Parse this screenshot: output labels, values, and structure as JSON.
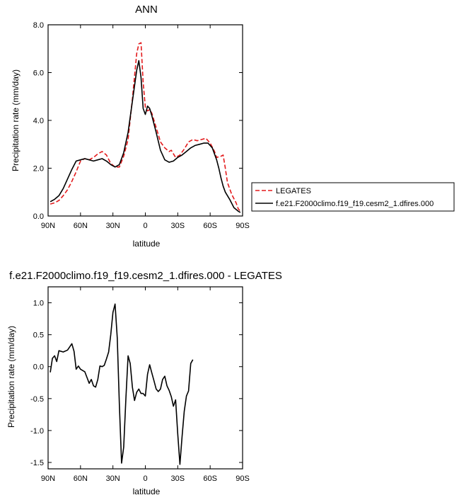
{
  "chart_data": [
    {
      "type": "line",
      "title": "ANN",
      "xlabel": "latitude",
      "ylabel": "Precipitation rate (mm/day)",
      "xlim": [
        -90,
        90
      ],
      "ylim": [
        0,
        8
      ],
      "xticks": [
        {
          "value": -90,
          "label": "90N"
        },
        {
          "value": -60,
          "label": "60N"
        },
        {
          "value": -30,
          "label": "30N"
        },
        {
          "value": 0,
          "label": "0"
        },
        {
          "value": 30,
          "label": "30S"
        },
        {
          "value": 60,
          "label": "60S"
        },
        {
          "value": 90,
          "label": "90S"
        }
      ],
      "yticks": [
        {
          "value": 0,
          "label": "0.0"
        },
        {
          "value": 2,
          "label": "2.0"
        },
        {
          "value": 4,
          "label": "4.0"
        },
        {
          "value": 6,
          "label": "6.0"
        },
        {
          "value": 8,
          "label": "8.0"
        }
      ],
      "grid": false,
      "legend": "right",
      "series": [
        {
          "name": "LEGATES",
          "color": "#e31a1c",
          "dash": true,
          "points": [
            [
              -88,
              0.5
            ],
            [
              -84,
              0.55
            ],
            [
              -80,
              0.65
            ],
            [
              -76,
              0.85
            ],
            [
              -72,
              1.1
            ],
            [
              -68,
              1.45
            ],
            [
              -64,
              1.85
            ],
            [
              -60,
              2.3
            ],
            [
              -56,
              2.4
            ],
            [
              -52,
              2.35
            ],
            [
              -48,
              2.45
            ],
            [
              -44,
              2.6
            ],
            [
              -40,
              2.7
            ],
            [
              -36,
              2.55
            ],
            [
              -32,
              2.2
            ],
            [
              -28,
              2.05
            ],
            [
              -24,
              2.05
            ],
            [
              -20,
              2.5
            ],
            [
              -16,
              3.2
            ],
            [
              -12,
              4.9
            ],
            [
              -8,
              6.8
            ],
            [
              -6,
              7.2
            ],
            [
              -4,
              7.25
            ],
            [
              -2,
              5.6
            ],
            [
              0,
              4.55
            ],
            [
              2,
              4.4
            ],
            [
              4,
              4.45
            ],
            [
              6,
              4.3
            ],
            [
              10,
              3.7
            ],
            [
              14,
              3.1
            ],
            [
              18,
              2.85
            ],
            [
              22,
              2.7
            ],
            [
              24,
              2.75
            ],
            [
              28,
              2.45
            ],
            [
              32,
              2.55
            ],
            [
              36,
              2.8
            ],
            [
              40,
              3.1
            ],
            [
              44,
              3.2
            ],
            [
              48,
              3.15
            ],
            [
              52,
              3.2
            ],
            [
              56,
              3.25
            ],
            [
              60,
              3.05
            ],
            [
              64,
              2.7
            ],
            [
              66,
              2.45
            ],
            [
              70,
              2.5
            ],
            [
              72,
              2.55
            ],
            [
              74,
              2.0
            ],
            [
              76,
              1.4
            ],
            [
              80,
              0.9
            ],
            [
              84,
              0.55
            ],
            [
              86,
              0.3
            ],
            [
              88,
              0.2
            ]
          ]
        },
        {
          "name": "f.e21.F2000climo.f19_f19.cesm2_1.dfires.000",
          "color": "#000000",
          "dash": false,
          "points": [
            [
              -88,
              0.6
            ],
            [
              -84,
              0.7
            ],
            [
              -80,
              0.85
            ],
            [
              -76,
              1.15
            ],
            [
              -72,
              1.55
            ],
            [
              -68,
              1.95
            ],
            [
              -64,
              2.3
            ],
            [
              -60,
              2.35
            ],
            [
              -56,
              2.4
            ],
            [
              -52,
              2.35
            ],
            [
              -48,
              2.3
            ],
            [
              -44,
              2.35
            ],
            [
              -40,
              2.4
            ],
            [
              -36,
              2.3
            ],
            [
              -32,
              2.15
            ],
            [
              -28,
              2.05
            ],
            [
              -24,
              2.15
            ],
            [
              -20,
              2.65
            ],
            [
              -16,
              3.5
            ],
            [
              -12,
              4.8
            ],
            [
              -8,
              6.1
            ],
            [
              -6,
              6.5
            ],
            [
              -4,
              5.8
            ],
            [
              -2,
              4.5
            ],
            [
              0,
              4.25
            ],
            [
              2,
              4.6
            ],
            [
              4,
              4.5
            ],
            [
              6,
              4.2
            ],
            [
              10,
              3.5
            ],
            [
              14,
              2.75
            ],
            [
              18,
              2.35
            ],
            [
              22,
              2.25
            ],
            [
              26,
              2.3
            ],
            [
              30,
              2.45
            ],
            [
              34,
              2.55
            ],
            [
              38,
              2.7
            ],
            [
              42,
              2.85
            ],
            [
              46,
              2.95
            ],
            [
              50,
              3.0
            ],
            [
              54,
              3.05
            ],
            [
              58,
              3.05
            ],
            [
              62,
              2.85
            ],
            [
              66,
              2.35
            ],
            [
              68,
              2.0
            ],
            [
              70,
              1.6
            ],
            [
              72,
              1.25
            ],
            [
              74,
              1.0
            ],
            [
              78,
              0.7
            ],
            [
              82,
              0.35
            ],
            [
              86,
              0.2
            ],
            [
              88,
              0.15
            ]
          ]
        }
      ]
    },
    {
      "type": "line",
      "title": "f.e21.F2000climo.f19_f19.cesm2_1.dfires.000 - LEGATES",
      "xlabel": "latitude",
      "ylabel": "Precipitation rate (mm/day)",
      "xlim": [
        -90,
        90
      ],
      "ylim": [
        -1.6,
        1.25
      ],
      "xticks": [
        {
          "value": -90,
          "label": "90N"
        },
        {
          "value": -60,
          "label": "60N"
        },
        {
          "value": -30,
          "label": "30N"
        },
        {
          "value": 0,
          "label": "0"
        },
        {
          "value": 30,
          "label": "30S"
        },
        {
          "value": 60,
          "label": "60S"
        },
        {
          "value": 90,
          "label": "90S"
        }
      ],
      "yticks": [
        {
          "value": -1.5,
          "label": "-1.5"
        },
        {
          "value": -1.0,
          "label": "-1.0"
        },
        {
          "value": -0.5,
          "label": "-0.5"
        },
        {
          "value": 0.0,
          "label": "0.0"
        },
        {
          "value": 0.5,
          "label": "0.5"
        },
        {
          "value": 1.0,
          "label": "1.0"
        }
      ],
      "grid": false,
      "series": [
        {
          "color": "#000000",
          "dash": false,
          "points": [
            [
              -88,
              -0.09
            ],
            [
              -86,
              0.13
            ],
            [
              -84,
              0.17
            ],
            [
              -82,
              0.08
            ],
            [
              -80,
              0.25
            ],
            [
              -76,
              0.23
            ],
            [
              -72,
              0.26
            ],
            [
              -68,
              0.36
            ],
            [
              -66,
              0.24
            ],
            [
              -64,
              -0.04
            ],
            [
              -62,
              0.01
            ],
            [
              -60,
              -0.04
            ],
            [
              -56,
              -0.08
            ],
            [
              -54,
              -0.17
            ],
            [
              -52,
              -0.26
            ],
            [
              -50,
              -0.2
            ],
            [
              -48,
              -0.3
            ],
            [
              -46,
              -0.32
            ],
            [
              -44,
              -0.2
            ],
            [
              -42,
              0.01
            ],
            [
              -40,
              0.0
            ],
            [
              -38,
              0.02
            ],
            [
              -36,
              0.12
            ],
            [
              -34,
              0.23
            ],
            [
              -32,
              0.5
            ],
            [
              -30,
              0.85
            ],
            [
              -28,
              0.98
            ],
            [
              -26,
              0.45
            ],
            [
              -24,
              -0.6
            ],
            [
              -22,
              -1.51
            ],
            [
              -20,
              -1.26
            ],
            [
              -18,
              -0.5
            ],
            [
              -16,
              0.17
            ],
            [
              -14,
              0.05
            ],
            [
              -12,
              -0.32
            ],
            [
              -10,
              -0.53
            ],
            [
              -8,
              -0.4
            ],
            [
              -6,
              -0.35
            ],
            [
              -4,
              -0.42
            ],
            [
              -2,
              -0.42
            ],
            [
              0,
              -0.46
            ],
            [
              2,
              -0.12
            ],
            [
              4,
              0.03
            ],
            [
              6,
              -0.1
            ],
            [
              8,
              -0.22
            ],
            [
              10,
              -0.35
            ],
            [
              12,
              -0.39
            ],
            [
              14,
              -0.35
            ],
            [
              16,
              -0.2
            ],
            [
              18,
              -0.15
            ],
            [
              20,
              -0.3
            ],
            [
              22,
              -0.37
            ],
            [
              24,
              -0.47
            ],
            [
              26,
              -0.62
            ],
            [
              28,
              -0.52
            ],
            [
              30,
              -1.05
            ],
            [
              32,
              -1.53
            ],
            [
              34,
              -1.1
            ],
            [
              36,
              -0.7
            ],
            [
              38,
              -0.46
            ],
            [
              40,
              -0.38
            ],
            [
              42,
              0.05
            ],
            [
              44,
              0.11
            ]
          ]
        }
      ]
    }
  ]
}
